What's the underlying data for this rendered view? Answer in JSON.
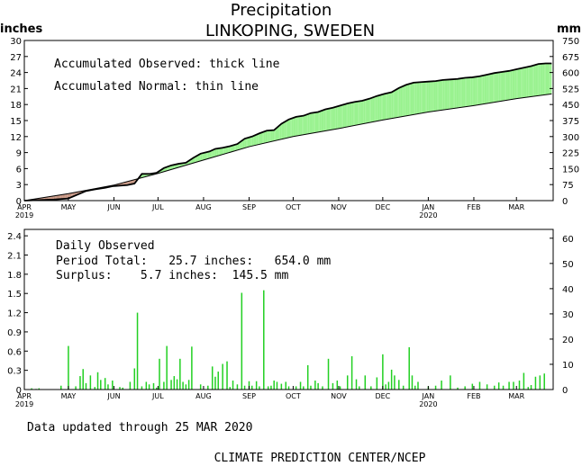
{
  "header": {
    "title": "Precipitation",
    "location": "LINKOPING, SWEDEN",
    "left_unit": "inches",
    "right_unit": "mm"
  },
  "top_panel": {
    "legend_observed": "Accumulated Observed: thick line",
    "legend_normal": "Accumulated Normal: thin line",
    "colors": {
      "surplus": "#99f28f",
      "deficit": "#c79683",
      "line": "#000000"
    }
  },
  "bottom_panel": {
    "heading": "Daily Observed",
    "period_total": "Period Total:   25.7 inches:   654.0 mm",
    "surplus": "Surplus:    5.7 inches:  145.5 mm",
    "bar_color": "#22d022"
  },
  "footer": {
    "updated": "Data updated through 25 MAR 2020",
    "credit": "CLIMATE PREDICTION CENTER/NCEP"
  },
  "chart_data": [
    {
      "type": "area",
      "title": "Precipitation",
      "subtitle": "LINKOPING, SWEDEN",
      "ylabel_left": "inches",
      "ylabel_right": "mm",
      "xlim": [
        0,
        360
      ],
      "x_unit": "days since 1 APR 2019",
      "ylim": [
        0,
        30
      ],
      "ylim_right": [
        0,
        750
      ],
      "y_ticks": [
        0,
        3,
        6,
        9,
        12,
        15,
        18,
        21,
        24,
        27,
        30
      ],
      "y_ticks_right": [
        0,
        75,
        150,
        225,
        300,
        375,
        450,
        525,
        600,
        675,
        750
      ],
      "month_ticks": [
        {
          "x": 0,
          "label": "APR",
          "year": "2019"
        },
        {
          "x": 30,
          "label": "MAY",
          "year": ""
        },
        {
          "x": 61,
          "label": "JUN",
          "year": ""
        },
        {
          "x": 91,
          "label": "JUL",
          "year": ""
        },
        {
          "x": 122,
          "label": "AUG",
          "year": ""
        },
        {
          "x": 153,
          "label": "SEP",
          "year": ""
        },
        {
          "x": 183,
          "label": "OCT",
          "year": ""
        },
        {
          "x": 214,
          "label": "NOV",
          "year": ""
        },
        {
          "x": 244,
          "label": "DEC",
          "year": ""
        },
        {
          "x": 275,
          "label": "JAN",
          "year": "2020"
        },
        {
          "x": 306,
          "label": "FEB",
          "year": ""
        },
        {
          "x": 335,
          "label": "MAR",
          "year": ""
        }
      ],
      "grid": false,
      "series": [
        {
          "name": "Accumulated Observed",
          "x": [
            0,
            10,
            20,
            30,
            42,
            48,
            55,
            60,
            65,
            70,
            75,
            80,
            85,
            90,
            95,
            100,
            105,
            110,
            115,
            120,
            126,
            130,
            135,
            140,
            145,
            150,
            155,
            160,
            165,
            170,
            175,
            180,
            185,
            190,
            195,
            200,
            205,
            210,
            215,
            220,
            225,
            230,
            235,
            240,
            245,
            250,
            255,
            260,
            265,
            270,
            275,
            280,
            285,
            290,
            295,
            300,
            305,
            310,
            315,
            320,
            325,
            330,
            335,
            340,
            345,
            350,
            355,
            359
          ],
          "y": [
            0.0,
            0.1,
            0.2,
            0.4,
            1.8,
            2.1,
            2.4,
            2.7,
            2.8,
            2.9,
            3.2,
            5.0,
            5.0,
            5.2,
            6.1,
            6.6,
            6.9,
            7.1,
            8.0,
            8.8,
            9.2,
            9.7,
            9.9,
            10.2,
            10.6,
            11.6,
            12.0,
            12.6,
            13.1,
            13.2,
            14.4,
            15.2,
            15.7,
            15.9,
            16.4,
            16.6,
            17.1,
            17.4,
            17.8,
            18.2,
            18.5,
            18.7,
            19.1,
            19.6,
            20.0,
            20.3,
            21.1,
            21.7,
            22.1,
            22.2,
            22.3,
            22.4,
            22.6,
            22.7,
            22.8,
            23.0,
            23.1,
            23.3,
            23.6,
            23.9,
            24.1,
            24.3,
            24.6,
            24.9,
            25.2,
            25.6,
            25.7,
            25.7
          ]
        },
        {
          "name": "Accumulated Normal",
          "x": [
            0,
            30,
            61,
            91,
            122,
            153,
            183,
            214,
            244,
            275,
            306,
            335,
            359
          ],
          "y": [
            0.0,
            1.3,
            2.9,
            5.1,
            7.6,
            10.1,
            12.0,
            13.5,
            15.1,
            16.6,
            17.8,
            19.1,
            20.0
          ]
        }
      ]
    },
    {
      "type": "bar",
      "title": "Daily Observed",
      "xlim": [
        0,
        360
      ],
      "x_unit": "days since 1 APR 2019",
      "ylim": [
        0,
        2.5
      ],
      "ylim_right": [
        0,
        63.5
      ],
      "y_ticks": [
        0,
        0.3,
        0.6,
        0.9,
        1.2,
        1.5,
        1.8,
        2.1,
        2.4
      ],
      "y_ticks_right": [
        0,
        10,
        20,
        30,
        40,
        50,
        60
      ],
      "grid": false,
      "x": [
        5,
        8,
        10,
        25,
        30,
        35,
        38,
        40,
        42,
        45,
        48,
        50,
        52,
        55,
        57,
        60,
        65,
        67,
        72,
        75,
        77,
        80,
        83,
        85,
        88,
        90,
        92,
        95,
        97,
        100,
        102,
        104,
        106,
        108,
        110,
        112,
        114,
        120,
        125,
        128,
        130,
        132,
        135,
        138,
        140,
        142,
        145,
        148,
        150,
        153,
        155,
        158,
        160,
        163,
        166,
        168,
        170,
        172,
        175,
        178,
        180,
        185,
        188,
        190,
        193,
        195,
        198,
        200,
        203,
        207,
        210,
        213,
        215,
        220,
        223,
        226,
        228,
        232,
        236,
        240,
        244,
        246,
        248,
        250,
        252,
        255,
        258,
        262,
        264,
        266,
        268,
        275,
        280,
        284,
        290,
        295,
        300,
        305,
        310,
        315,
        320,
        323,
        326,
        330,
        333,
        337,
        340,
        343,
        345,
        348,
        351,
        354
      ],
      "values": [
        0.02,
        0.01,
        0.02,
        0.06,
        0.68,
        0.05,
        0.21,
        0.32,
        0.1,
        0.22,
        0.04,
        0.27,
        0.15,
        0.18,
        0.08,
        0.14,
        0.04,
        0.03,
        0.12,
        0.33,
        1.2,
        0.05,
        0.12,
        0.08,
        0.1,
        0.03,
        0.48,
        0.12,
        0.68,
        0.15,
        0.21,
        0.16,
        0.48,
        0.12,
        0.08,
        0.15,
        0.67,
        0.08,
        0.06,
        0.36,
        0.2,
        0.28,
        0.4,
        0.44,
        0.04,
        0.14,
        0.08,
        1.51,
        0.06,
        0.13,
        0.06,
        0.13,
        0.05,
        1.55,
        0.05,
        0.06,
        0.14,
        0.12,
        0.09,
        0.12,
        0.05,
        0.05,
        0.12,
        0.05,
        0.38,
        0.06,
        0.14,
        0.1,
        0.05,
        0.48,
        0.1,
        0.14,
        0.05,
        0.22,
        0.52,
        0.16,
        0.05,
        0.22,
        0.05,
        0.19,
        0.55,
        0.08,
        0.12,
        0.31,
        0.22,
        0.15,
        0.06,
        0.66,
        0.22,
        0.06,
        0.12,
        0.05,
        0.06,
        0.14,
        0.22,
        0.03,
        0.05,
        0.09,
        0.12,
        0.08,
        0.06,
        0.11,
        0.06,
        0.12,
        0.12,
        0.14,
        0.26,
        0.04,
        0.07,
        0.2,
        0.22,
        0.25
      ]
    }
  ]
}
